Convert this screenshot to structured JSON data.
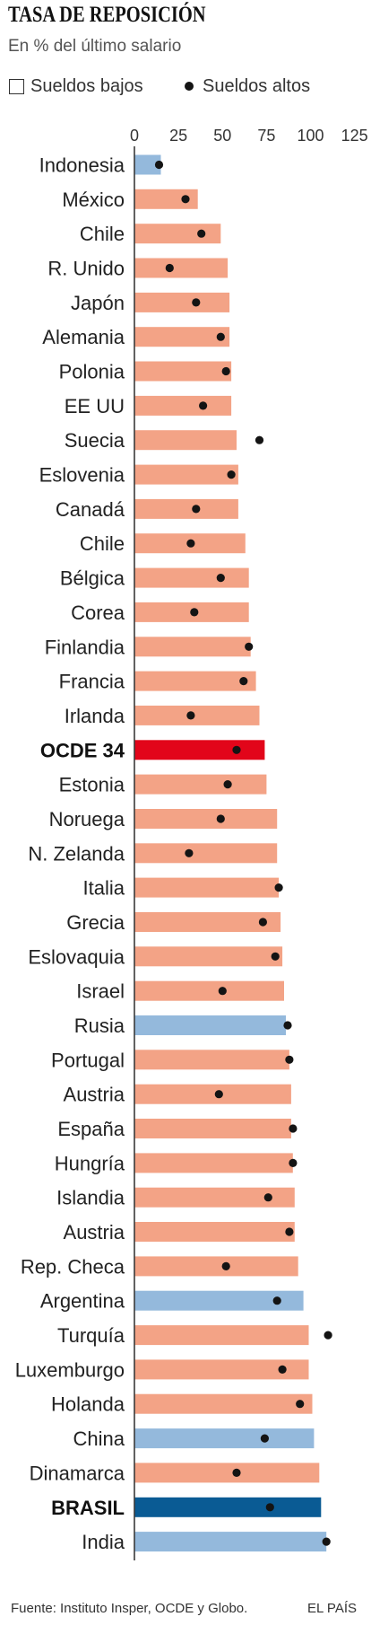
{
  "legend": {
    "low_icon": "square-outline-icon",
    "high_icon": "black-dot-icon"
  },
  "footer": {
    "source": "Fuente: Instituto Insper, OCDE y Globo.",
    "brand": "EL PAÍS"
  },
  "colors": {
    "dot": "#141414",
    "axis": "#3a3a3a"
  },
  "chart_data": {
    "type": "bar",
    "orientation": "horizontal",
    "title": "TASA DE REPOSICIÓN",
    "subtitle": "En % del último salario",
    "xlim": [
      0,
      125
    ],
    "xticks": [
      0,
      25,
      50,
      75,
      100,
      125
    ],
    "grid": false,
    "legend_position": "top-left",
    "categories": [
      "Indonesia",
      "México",
      "Chile",
      "R. Unido",
      "Japón",
      "Alemania",
      "Polonia",
      "EE UU",
      "Suecia",
      "Eslovenia",
      "Canadá",
      "Chile",
      "Bélgica",
      "Corea",
      "Finlandia",
      "Francia",
      "Irlanda",
      "OCDE 34",
      "Estonia",
      "Noruega",
      "N. Zelanda",
      "Italia",
      "Grecia",
      "Eslovaquia",
      "Israel",
      "Rusia",
      "Portugal",
      "Austria",
      "España",
      "Hungría",
      "Islandia",
      "Austria",
      "Rep. Checa",
      "Argentina",
      "Turquía",
      "Luxemburgo",
      "Holanda",
      "China",
      "Dinamarca",
      "BRASIL",
      "India"
    ],
    "series": [
      {
        "name": "Sueldos bajos",
        "mark": "bar",
        "values": [
          15,
          36,
          49,
          53,
          54,
          54,
          55,
          55,
          58,
          59,
          59,
          63,
          65,
          65,
          66,
          69,
          71,
          74,
          75,
          81,
          81,
          82,
          83,
          84,
          85,
          86,
          88,
          89,
          89,
          90,
          91,
          91,
          93,
          96,
          99,
          99,
          101,
          102,
          105,
          106,
          109
        ]
      },
      {
        "name": "Sueldos altos",
        "mark": "dot",
        "values": [
          14,
          29,
          38,
          20,
          35,
          49,
          52,
          39,
          71,
          55,
          35,
          32,
          49,
          34,
          65,
          62,
          32,
          58,
          53,
          49,
          31,
          82,
          73,
          80,
          50,
          87,
          88,
          48,
          90,
          90,
          76,
          88,
          52,
          81,
          110,
          84,
          94,
          74,
          58,
          77,
          109
        ]
      }
    ],
    "bar_colors": [
      "#94b9dc",
      "#f3a386",
      "#f3a386",
      "#f3a386",
      "#f3a386",
      "#f3a386",
      "#f3a386",
      "#f3a386",
      "#f3a386",
      "#f3a386",
      "#f3a386",
      "#f3a386",
      "#f3a386",
      "#f3a386",
      "#f3a386",
      "#f3a386",
      "#f3a386",
      "#e2051a",
      "#f3a386",
      "#f3a386",
      "#f3a386",
      "#f3a386",
      "#f3a386",
      "#f3a386",
      "#f3a386",
      "#94b9dc",
      "#f3a386",
      "#f3a386",
      "#f3a386",
      "#f3a386",
      "#f3a386",
      "#f3a386",
      "#f3a386",
      "#94b9dc",
      "#f3a386",
      "#f3a386",
      "#f3a386",
      "#94b9dc",
      "#f3a386",
      "#0a5b94",
      "#94b9dc"
    ]
  }
}
